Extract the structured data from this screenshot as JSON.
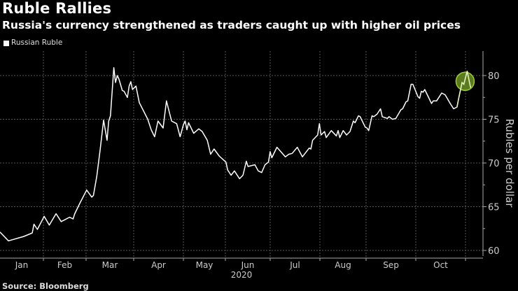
{
  "header": {
    "title": "Ruble Rallies",
    "subtitle": "Russia's currency strengthened as traders caught up with higher oil prices"
  },
  "legend": {
    "label": "Russian Ruble",
    "color": "#ffffff"
  },
  "footer": {
    "source": "Source: Bloomberg"
  },
  "chart_data": {
    "type": "line",
    "title": "Ruble Rallies",
    "subtitle": "Russia's currency strengthened as traders caught up with higher oil prices",
    "xlabel": "2020",
    "ylabel": "Rubles per dollar",
    "x_unit": "approx. day of year 2020",
    "ylim": [
      60,
      82
    ],
    "yticks": [
      60,
      65,
      70,
      75,
      80
    ],
    "month_labels": [
      "Jan",
      "Feb",
      "Mar",
      "Apr",
      "May",
      "Jun",
      "Jul",
      "Aug",
      "Sep",
      "Oct"
    ],
    "year_label": "2020",
    "grid": true,
    "legend_position": "top-left",
    "highlight": {
      "description_color": "#6b8e23",
      "x": 275,
      "y": 79.5
    },
    "series": [
      {
        "name": "Russian Ruble",
        "color": "#ffffff",
        "points": [
          [
            0,
            62.1
          ],
          [
            5,
            61.1
          ],
          [
            14,
            61.6
          ],
          [
            19,
            62.0
          ],
          [
            20,
            63.0
          ],
          [
            22,
            62.4
          ],
          [
            26,
            63.9
          ],
          [
            29,
            62.9
          ],
          [
            33,
            64.2
          ],
          [
            36,
            63.3
          ],
          [
            41,
            63.8
          ],
          [
            43,
            63.6
          ],
          [
            44,
            64.2
          ],
          [
            47,
            65.4
          ],
          [
            51,
            66.9
          ],
          [
            54,
            66.1
          ],
          [
            55,
            66.3
          ],
          [
            57,
            68.5
          ],
          [
            59,
            71.6
          ],
          [
            61,
            74.9
          ],
          [
            63,
            72.6
          ],
          [
            64,
            74.8
          ],
          [
            65,
            75.4
          ],
          [
            67,
            80.9
          ],
          [
            68,
            79.2
          ],
          [
            69,
            80.0
          ],
          [
            70,
            79.6
          ],
          [
            72,
            78.3
          ],
          [
            73,
            78.2
          ],
          [
            75,
            77.5
          ],
          [
            76,
            78.8
          ],
          [
            77,
            79.3
          ],
          [
            78,
            78.4
          ],
          [
            80,
            78.8
          ],
          [
            82,
            76.9
          ],
          [
            87,
            75.0
          ],
          [
            89,
            73.8
          ],
          [
            91,
            73.0
          ],
          [
            93,
            74.8
          ],
          [
            96,
            74.0
          ],
          [
            98,
            77.1
          ],
          [
            101,
            74.8
          ],
          [
            104,
            74.5
          ],
          [
            106,
            73.0
          ],
          [
            108,
            74.4
          ],
          [
            109,
            74.8
          ],
          [
            110,
            73.8
          ],
          [
            111,
            74.6
          ],
          [
            114,
            73.4
          ],
          [
            117,
            73.9
          ],
          [
            119,
            73.6
          ],
          [
            122,
            72.6
          ],
          [
            124,
            71.0
          ],
          [
            126,
            71.6
          ],
          [
            129,
            70.8
          ],
          [
            133,
            70.1
          ],
          [
            134,
            69.2
          ],
          [
            136,
            68.6
          ],
          [
            138,
            69.1
          ],
          [
            141,
            68.2
          ],
          [
            143,
            68.6
          ],
          [
            145,
            70.2
          ],
          [
            146,
            69.6
          ],
          [
            150,
            69.8
          ],
          [
            152,
            69.1
          ],
          [
            154,
            68.9
          ],
          [
            156,
            69.8
          ],
          [
            158,
            70.1
          ],
          [
            159,
            71.3
          ],
          [
            160,
            70.6
          ],
          [
            163,
            71.8
          ],
          [
            168,
            70.7
          ],
          [
            170,
            71.0
          ],
          [
            172,
            71.1
          ],
          [
            175,
            71.8
          ],
          [
            178,
            70.7
          ],
          [
            182,
            71.7
          ],
          [
            183,
            71.6
          ],
          [
            184,
            72.6
          ],
          [
            187,
            73.2
          ],
          [
            188,
            74.5
          ],
          [
            189,
            73.2
          ],
          [
            191,
            73.6
          ],
          [
            192,
            72.9
          ],
          [
            195,
            73.7
          ],
          [
            198,
            73.1
          ],
          [
            199,
            73.7
          ],
          [
            200,
            72.9
          ],
          [
            202,
            73.7
          ],
          [
            204,
            73.2
          ],
          [
            206,
            73.6
          ],
          [
            208,
            74.8
          ],
          [
            209,
            74.6
          ],
          [
            211,
            75.4
          ],
          [
            212,
            75.3
          ],
          [
            215,
            74.1
          ],
          [
            216,
            74.0
          ],
          [
            217,
            73.7
          ],
          [
            219,
            75.4
          ],
          [
            220,
            75.3
          ],
          [
            222,
            75.6
          ],
          [
            224,
            76.2
          ],
          [
            225,
            75.3
          ],
          [
            228,
            75.1
          ],
          [
            229,
            75.3
          ],
          [
            231,
            75.0
          ],
          [
            233,
            75.1
          ],
          [
            236,
            76.1
          ],
          [
            237,
            76.2
          ],
          [
            239,
            77.0
          ],
          [
            240,
            77.1
          ],
          [
            242,
            79.0
          ],
          [
            243,
            79.0
          ],
          [
            246,
            77.6
          ],
          [
            247,
            77.4
          ],
          [
            248,
            78.2
          ],
          [
            249,
            78.1
          ],
          [
            250,
            78.4
          ],
          [
            254,
            76.8
          ],
          [
            255,
            77.1
          ],
          [
            257,
            77.1
          ],
          [
            260,
            78.0
          ],
          [
            262,
            77.8
          ],
          [
            265,
            76.8
          ],
          [
            267,
            76.2
          ],
          [
            269,
            76.4
          ],
          [
            270,
            77.4
          ],
          [
            272,
            79.2
          ],
          [
            273,
            79.0
          ],
          [
            275,
            80.5
          ],
          [
            277,
            78.6
          ]
        ]
      }
    ]
  }
}
